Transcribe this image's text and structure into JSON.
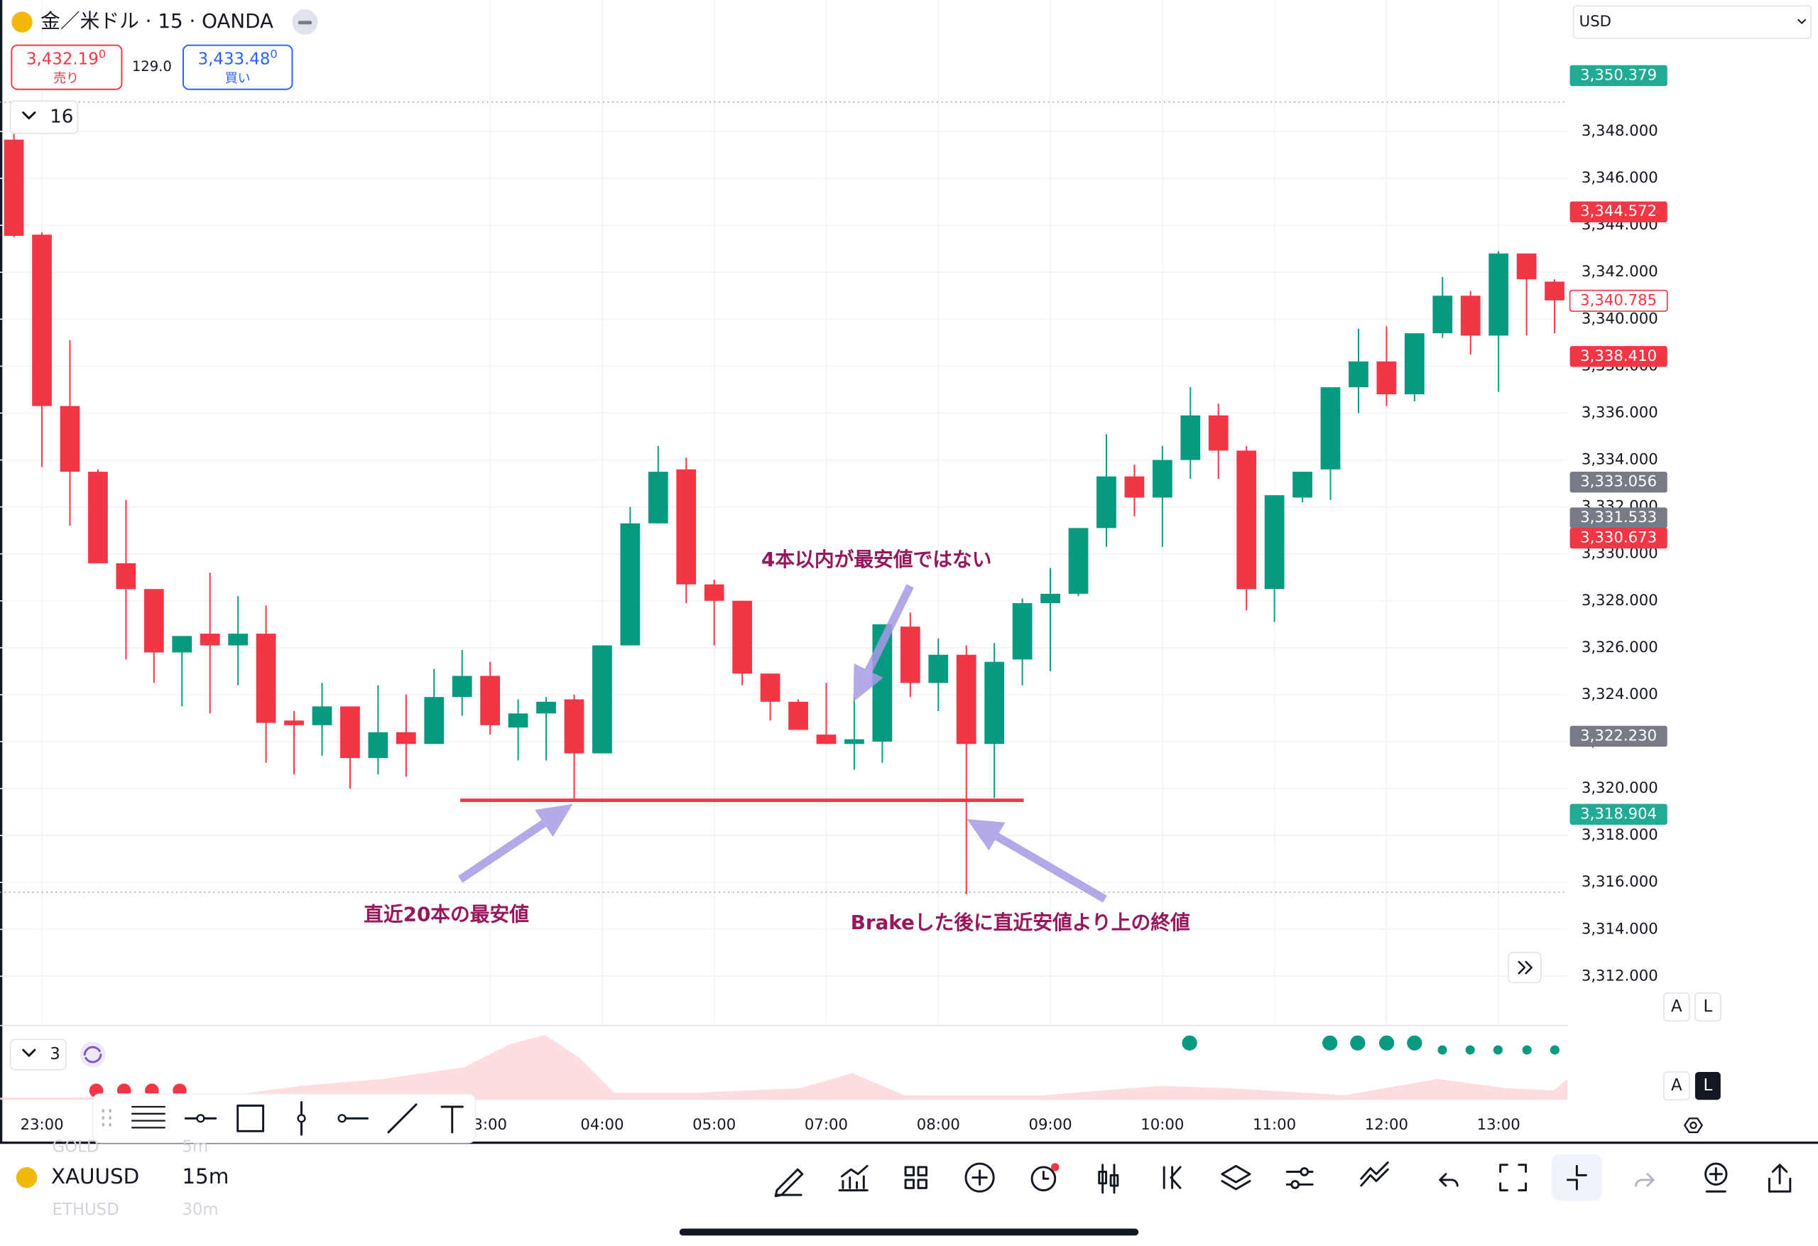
{
  "header": {
    "symbol_title": "金／米ドル · 15 · OANDA",
    "sell_price": "3,432.19",
    "sell_price_sup": "0",
    "sell_label": "売り",
    "spread": "129.0",
    "buy_price": "3,433.48",
    "buy_price_sup": "0",
    "buy_label": "買い",
    "indicator_count": "16",
    "currency": "USD"
  },
  "chart_data": {
    "type": "candlestick",
    "categories": [
      null,
      "23:00",
      null,
      null,
      null,
      null,
      null,
      null,
      null,
      null,
      null,
      null,
      null,
      null,
      null,
      null,
      null,
      "3:00",
      null,
      null,
      null,
      "04:00",
      null,
      null,
      null,
      "05:00",
      null,
      null,
      null,
      "07:00",
      null,
      null,
      null,
      "08:00",
      null,
      null,
      null,
      "09:00",
      null,
      null,
      null,
      "10:00",
      null,
      null,
      null,
      "11:00",
      null,
      null,
      null,
      "12:00",
      null,
      null,
      null,
      "13:00",
      null,
      null
    ],
    "open": [
      3347.65,
      3343.6,
      3336.3,
      3333.5,
      3329.6,
      3328.5,
      3325.8,
      3326.6,
      3326.1,
      3326.6,
      3322.9,
      3322.7,
      3323.5,
      3321.3,
      3322.4,
      3321.9,
      3323.9,
      3324.8,
      3322.6,
      3323.2,
      3323.8,
      3321.5,
      3326.1,
      3331.3,
      3333.6,
      3328.7,
      3328.0,
      3324.9,
      3323.7,
      3322.3,
      3321.9,
      3322.0,
      3326.9,
      3324.5,
      3325.7,
      3321.9,
      3325.5,
      3327.9,
      3328.3,
      3331.1,
      3333.3,
      3332.4,
      3334.0,
      3335.9,
      3334.4,
      3328.5,
      3332.4,
      3333.6,
      3337.1,
      3338.2,
      3336.8,
      3339.4,
      3341.0,
      3339.3,
      3342.8,
      3341.6
    ],
    "high": [
      3348.2,
      3343.7,
      3339.1,
      3333.6,
      3332.3,
      3328.5,
      3326.5,
      3329.2,
      3328.2,
      3327.8,
      3323.3,
      3324.5,
      3323.5,
      3324.4,
      3324.0,
      3325.1,
      3325.9,
      3325.4,
      3323.8,
      3323.9,
      3324.0,
      3326.1,
      3332.0,
      3334.6,
      3334.1,
      3328.9,
      3328.0,
      3324.9,
      3323.8,
      3324.5,
      3323.9,
      3327.0,
      3327.5,
      3326.4,
      3326.1,
      3326.2,
      3328.1,
      3329.4,
      3331.1,
      3335.1,
      3333.8,
      3334.6,
      3337.1,
      3336.4,
      3334.6,
      3332.5,
      3333.5,
      3337.1,
      3339.6,
      3339.7,
      3339.4,
      3341.8,
      3341.2,
      3342.9,
      3342.8,
      3341.7
    ],
    "low": [
      3343.5,
      3333.7,
      3331.2,
      3329.6,
      3325.5,
      3324.5,
      3323.5,
      3323.2,
      3324.4,
      3321.1,
      3320.6,
      3321.4,
      3320.0,
      3320.6,
      3320.5,
      3321.9,
      3323.1,
      3322.3,
      3321.2,
      3321.2,
      3319.5,
      3321.5,
      3326.1,
      3331.3,
      3327.9,
      3326.1,
      3324.4,
      3322.9,
      3322.5,
      3321.9,
      3320.8,
      3321.1,
      3323.9,
      3323.3,
      3315.5,
      3319.6,
      3324.4,
      3325.0,
      3328.2,
      3330.3,
      3331.6,
      3330.3,
      3333.2,
      3333.2,
      3327.6,
      3327.1,
      3332.2,
      3332.3,
      3336.0,
      3336.3,
      3336.5,
      3339.2,
      3338.5,
      3336.9,
      3339.3,
      3339.4
    ],
    "close": [
      3343.55,
      3336.3,
      3333.5,
      3329.6,
      3328.5,
      3325.8,
      3326.5,
      3326.1,
      3326.6,
      3322.8,
      3322.7,
      3323.5,
      3321.3,
      3322.4,
      3321.9,
      3323.9,
      3324.8,
      3322.7,
      3323.2,
      3323.7,
      3321.5,
      3326.1,
      3331.3,
      3333.5,
      3328.7,
      3328.0,
      3324.9,
      3323.7,
      3322.5,
      3321.9,
      3322.1,
      3327.0,
      3324.5,
      3325.7,
      3321.9,
      3325.4,
      3327.9,
      3328.3,
      3331.1,
      3333.3,
      3332.4,
      3334.0,
      3335.9,
      3334.4,
      3328.5,
      3332.5,
      3333.5,
      3337.1,
      3338.2,
      3336.8,
      3339.4,
      3341.0,
      3339.3,
      3342.8,
      3341.7,
      3340.8
    ],
    "up_color": "#089981",
    "down_color": "#f23645",
    "ylim": [
      3310,
      3353.6
    ],
    "yticks": [
      {
        "value": 3312,
        "label": "3,312.000"
      },
      {
        "value": 3314,
        "label": "3,314.000"
      },
      {
        "value": 3316,
        "label": "3,316.000"
      },
      {
        "value": 3318,
        "label": "3,318.000"
      },
      {
        "value": 3320,
        "label": "3,320.000"
      },
      {
        "value": 3322,
        "label": "3,322.000"
      },
      {
        "value": 3324,
        "label": "3,324.000"
      },
      {
        "value": 3326,
        "label": "3,326.000"
      },
      {
        "value": 3328,
        "label": "3,328.000"
      },
      {
        "value": 3330,
        "label": "3,330.000"
      },
      {
        "value": 3332,
        "label": "3,332.000"
      },
      {
        "value": 3334,
        "label": "3,334.000"
      },
      {
        "value": 3336,
        "label": "3,336.000"
      },
      {
        "value": 3338,
        "label": "3,338.000"
      },
      {
        "value": 3340,
        "label": "3,340.000"
      },
      {
        "value": 3342,
        "label": "3,342.000"
      },
      {
        "value": 3344,
        "label": "3,344.000"
      },
      {
        "value": 3346,
        "label": "3,346.000"
      },
      {
        "value": 3348,
        "label": "3,348.000"
      }
    ],
    "grid": true,
    "price_badges": [
      {
        "value": 3350.379,
        "label": "3,350.379",
        "color": "#22ab94"
      },
      {
        "value": 3344.572,
        "label": "3,344.572",
        "color": "#f23645"
      },
      {
        "value": 3340.785,
        "label": "3,340.785",
        "color": "#f23645",
        "outline": true
      },
      {
        "value": 3338.41,
        "label": "3,338.410",
        "color": "#f23645"
      },
      {
        "value": 3333.056,
        "label": "3,333.056",
        "color": "#787b86"
      },
      {
        "value": 3331.533,
        "label": "3,331.533",
        "color": "#787b86"
      },
      {
        "value": 3330.673,
        "label": "3,330.673",
        "color": "#f23645"
      },
      {
        "value": 3322.23,
        "label": "3,322.230",
        "color": "#787b86"
      },
      {
        "value": 3318.904,
        "label": "3,318.904",
        "color": "#22ab94"
      }
    ],
    "level_line": {
      "value": 3319.5,
      "color": "#f23645"
    },
    "annotations": [
      "4本以内が最安値ではない",
      "直近20本の最安値",
      "Brakeした後に直近安値より上の終値"
    ]
  },
  "indicator": {
    "count": "3"
  },
  "scale_buttons": [
    "A",
    "L"
  ],
  "bottom": {
    "symbol": "XAUUSD",
    "interval": "15m",
    "watchlist": [
      [
        "GOLD",
        "5m"
      ],
      [
        "ETHUSD",
        "30m"
      ]
    ]
  }
}
